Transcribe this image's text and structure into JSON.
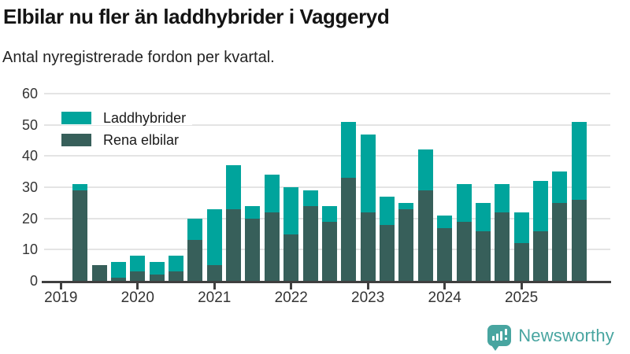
{
  "header": {
    "title": "Elbilar nu fler än laddhybrider i Vaggeryd",
    "subtitle": "Antal nyregistrerade fordon per kvartal."
  },
  "chart_data": {
    "type": "bar",
    "stacked": true,
    "x": [
      "2019 K1",
      "2019 K2",
      "2019 K3",
      "2019 K4",
      "2020 K1",
      "2020 K2",
      "2020 K3",
      "2020 K4",
      "2021 K1",
      "2021 K2",
      "2021 K3",
      "2021 K4",
      "2022 K1",
      "2022 K2",
      "2022 K3",
      "2022 K4",
      "2023 K1",
      "2023 K2",
      "2023 K3",
      "2023 K4",
      "2024 K1",
      "2024 K2",
      "2024 K3",
      "2024 K4",
      "2025 K1",
      "2025 K2",
      "2025 K3",
      "2025 K4"
    ],
    "series": [
      {
        "name": "Laddhybrider",
        "color": "#00a49c",
        "stack_position": "top",
        "values": [
          0,
          2,
          0,
          5,
          5,
          4,
          5,
          7,
          18,
          14,
          4,
          12,
          15,
          5,
          5,
          18,
          25,
          9,
          2,
          13,
          4,
          12,
          9,
          9,
          10,
          16,
          10,
          25
        ]
      },
      {
        "name": "Rena elbilar",
        "color": "#375f5a",
        "stack_position": "bottom",
        "values": [
          0,
          29,
          5,
          1,
          3,
          2,
          3,
          13,
          5,
          23,
          20,
          22,
          15,
          24,
          19,
          33,
          22,
          18,
          23,
          29,
          17,
          19,
          16,
          22,
          12,
          16,
          25,
          26
        ]
      }
    ],
    "totals": [
      0,
      31,
      5,
      6,
      8,
      6,
      8,
      20,
      23,
      37,
      24,
      34,
      30,
      29,
      24,
      51,
      47,
      27,
      25,
      42,
      21,
      31,
      25,
      31,
      22,
      32,
      35,
      51
    ],
    "xlabel": "",
    "ylabel": "",
    "ylim": [
      0,
      60
    ],
    "yticks": [
      0,
      10,
      20,
      30,
      40,
      50,
      60
    ],
    "x_tick_labels": [
      "2019",
      "2020",
      "2021",
      "2022",
      "2023",
      "2024",
      "2025"
    ],
    "x_tick_indices": [
      0,
      4,
      8,
      12,
      16,
      20,
      24
    ],
    "grid": true,
    "legend_position": "top-left"
  },
  "footer": {
    "brand": "Newsworthy"
  },
  "colors": {
    "laddhybrider": "#00a49c",
    "rena_elbilar": "#375f5a",
    "grid": "#e4e4e4",
    "axis": "#3f3f3f",
    "text": "#1a1a1a",
    "brand": "#48a5a0"
  }
}
